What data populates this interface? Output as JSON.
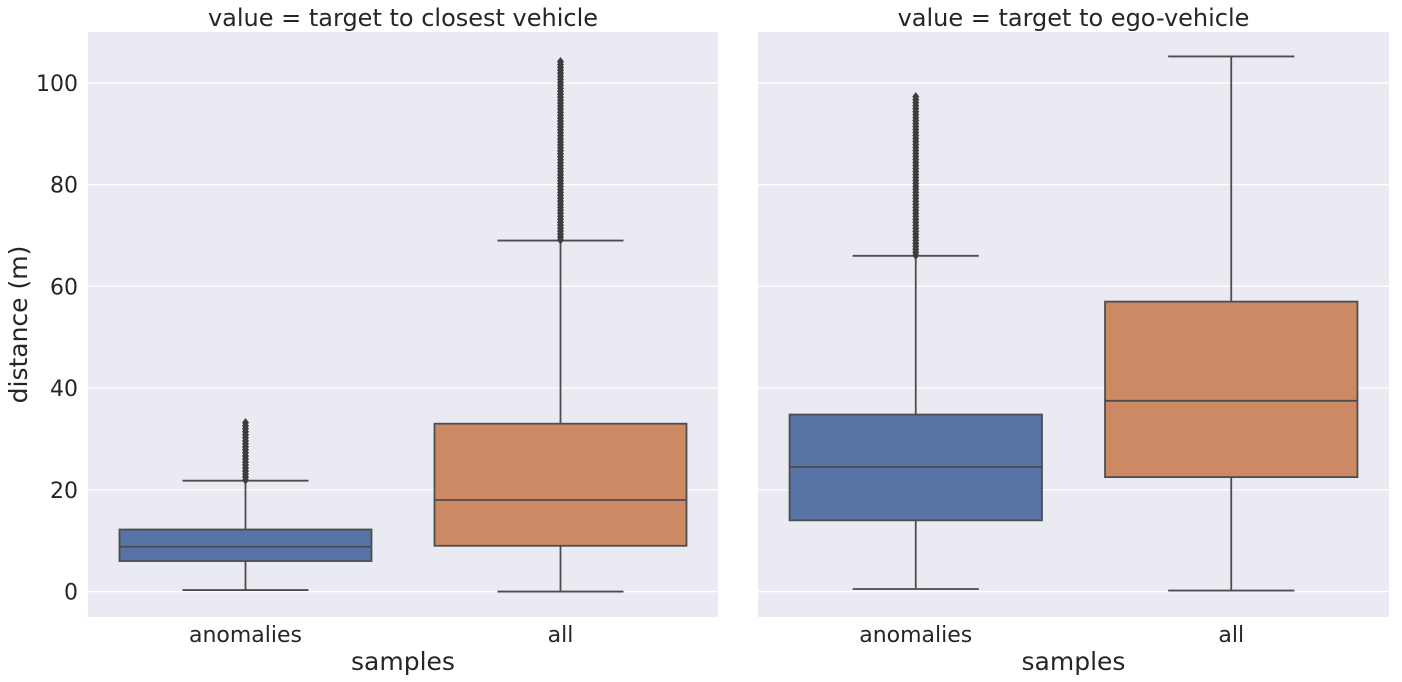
{
  "chart_data": [
    {
      "type": "box",
      "title": "value = target to closest vehicle",
      "xlabel": "samples",
      "ylabel": "distance (m)",
      "ylim": [
        -5,
        110
      ],
      "yticks": [
        0,
        20,
        40,
        60,
        80,
        100
      ],
      "grid": true,
      "categories": [
        "anomalies",
        "all"
      ],
      "boxes": [
        {
          "category": "anomalies",
          "color": "#5874a6",
          "whisker_low": 0.3,
          "q1": 6.0,
          "median": 8.8,
          "q3": 12.2,
          "whisker_high": 21.8,
          "outliers_min": 21.9,
          "outliers_max": 33.2
        },
        {
          "category": "all",
          "color": "#cc8963",
          "whisker_low": 0.0,
          "q1": 9.0,
          "median": 18.0,
          "q3": 33.0,
          "whisker_high": 69.0,
          "outliers_min": 69.1,
          "outliers_max": 104.2
        }
      ]
    },
    {
      "type": "box",
      "title": "value = target to ego-vehicle",
      "xlabel": "samples",
      "ylabel": "",
      "ylim": [
        -5,
        110
      ],
      "yticks": [
        0,
        20,
        40,
        60,
        80,
        100
      ],
      "grid": true,
      "categories": [
        "anomalies",
        "all"
      ],
      "boxes": [
        {
          "category": "anomalies",
          "color": "#5874a6",
          "whisker_low": 0.5,
          "q1": 14.0,
          "median": 24.5,
          "q3": 34.8,
          "whisker_high": 66.0,
          "outliers_min": 66.1,
          "outliers_max": 97.3
        },
        {
          "category": "all",
          "color": "#cc8963",
          "whisker_low": 0.2,
          "q1": 22.5,
          "median": 37.5,
          "q3": 57.0,
          "whisker_high": 105.2,
          "outliers_min": null,
          "outliers_max": null
        }
      ]
    }
  ]
}
